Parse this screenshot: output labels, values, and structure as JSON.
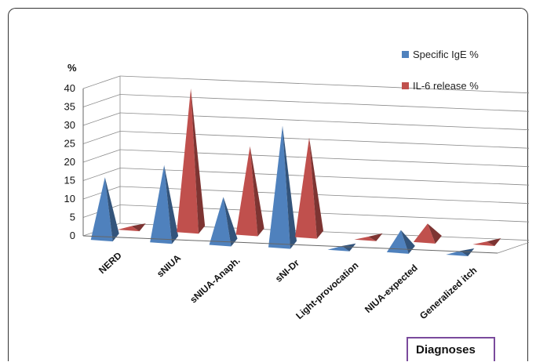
{
  "chart_data": {
    "type": "bar",
    "subtype": "3d-cone/pyramid",
    "ylabel": "%",
    "ylim": [
      0,
      40
    ],
    "yticks": [
      "0",
      "5",
      "10",
      "15",
      "20",
      "25",
      "30",
      "35",
      "40"
    ],
    "categories": [
      "NERD",
      "sNIUA",
      "sNIUA-Anaph.",
      "sNI-Dr",
      "Light-provocation",
      "NIUA-expected",
      "Generalized itch"
    ],
    "series": [
      {
        "name": "Specific IgE %",
        "color": "#4f81bd",
        "values": [
          17,
          21,
          13,
          33,
          1,
          6,
          1
        ]
      },
      {
        "name": "IL-6 release %",
        "color": "#c0504d",
        "values": [
          1,
          39,
          24,
          27,
          0.8,
          5,
          0.8
        ]
      }
    ],
    "grid": true,
    "legend_position": "top-right",
    "xlabel": "Diagnoses"
  }
}
